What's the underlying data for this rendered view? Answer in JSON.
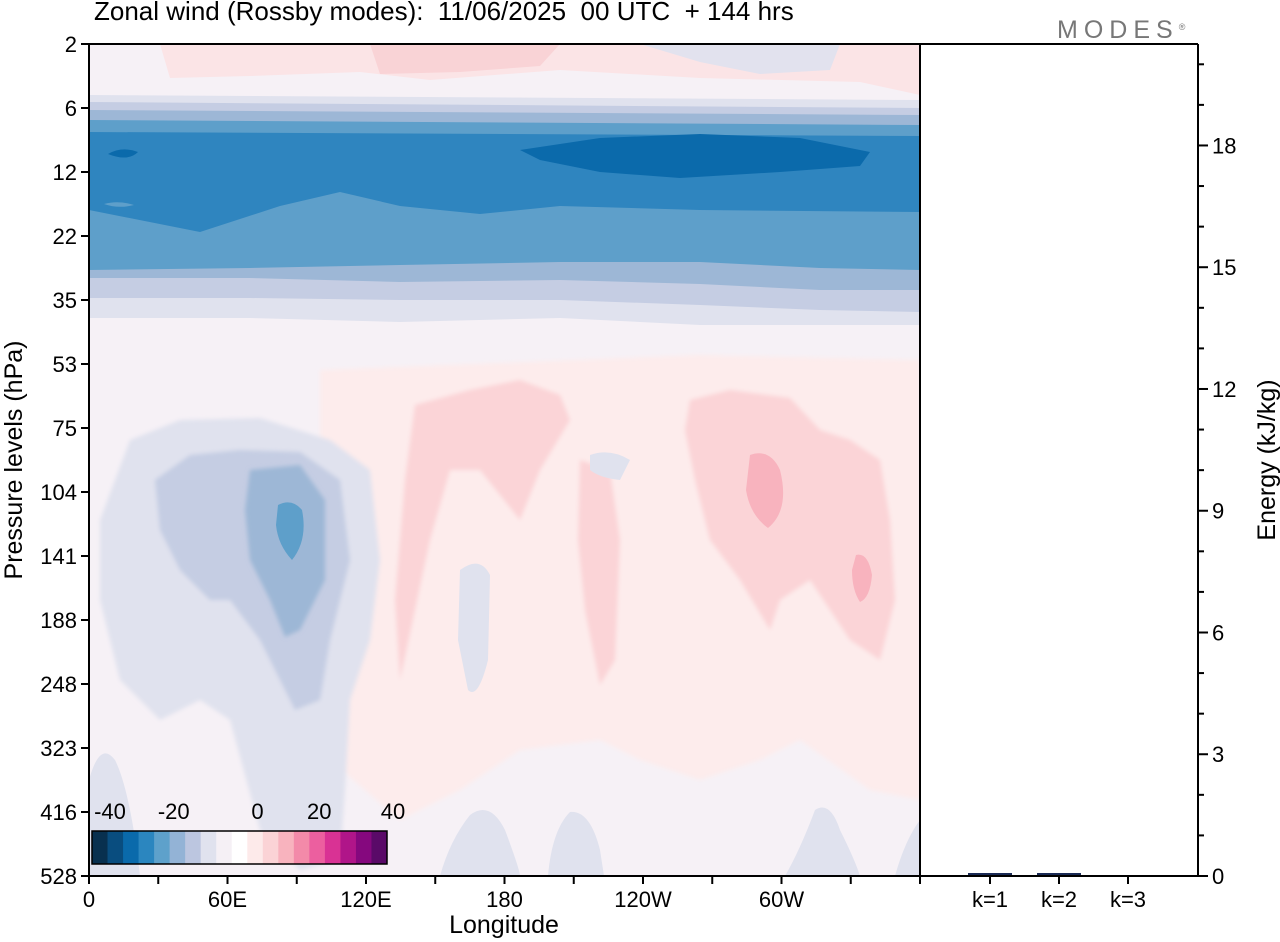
{
  "title": "Zonal wind (Rossby modes):  11/06/2025  00 UTC  + 144 hrs",
  "logo": {
    "text": "MODES",
    "mark": "®"
  },
  "chart_data": [
    {
      "type": "heatmap",
      "title": "Zonal wind (Rossby modes):  11/06/2025  00 UTC  + 144 hrs",
      "xlabel": "Longitude",
      "ylabel": "Pressure levels (hPa)",
      "x_ticks": [
        "0",
        "60E",
        "120E",
        "180",
        "120W",
        "60W"
      ],
      "y_ticks": [
        "2",
        "6",
        "12",
        "22",
        "35",
        "53",
        "75",
        "104",
        "141",
        "188",
        "248",
        "323",
        "416",
        "528"
      ],
      "y_scale": "pressure levels, top to bottom",
      "colorbar": {
        "labels": [
          "-40",
          "-20",
          "0",
          "20",
          "40"
        ],
        "range": [
          -40,
          40
        ],
        "colors": [
          "#08304f",
          "#094d7f",
          "#0a6aab",
          "#2b86bf",
          "#5ea1cb",
          "#93b3d6",
          "#bcc6e0",
          "#e0e2ee",
          "#f5f0f5",
          "#ffffff",
          "#fdeaea",
          "#fbd3d6",
          "#f8b3be",
          "#f38aa9",
          "#ec5f9f",
          "#d93294",
          "#b01589",
          "#85087e",
          "#5a0a68"
        ]
      },
      "field_bands": [
        {
          "level_hPa": 2,
          "u": 0
        },
        {
          "level_hPa": 6,
          "u": -8
        },
        {
          "level_hPa": 9,
          "u": -30
        },
        {
          "level_hPa": 12,
          "u": -28
        },
        {
          "level_hPa": 22,
          "u": -20
        },
        {
          "level_hPa": 35,
          "u": -12
        },
        {
          "level_hPa": 53,
          "u": 0
        },
        {
          "level_hPa": 104,
          "u": -10,
          "note": "negative core near 80E"
        },
        {
          "level_hPa": 104,
          "u": 6,
          "note": "positive cores near 130W and 65W"
        },
        {
          "level_hPa": 528,
          "u": 0
        }
      ]
    },
    {
      "type": "bar",
      "categories": [
        "k=1",
        "k=2",
        "k=3"
      ],
      "values": [
        0.03,
        0.02,
        0.0
      ],
      "ylabel": "Energy (kJ/kg)",
      "y_ticks": [
        0,
        3,
        6,
        9,
        12,
        15,
        18
      ],
      "ylim": [
        0,
        20.5
      ]
    }
  ]
}
